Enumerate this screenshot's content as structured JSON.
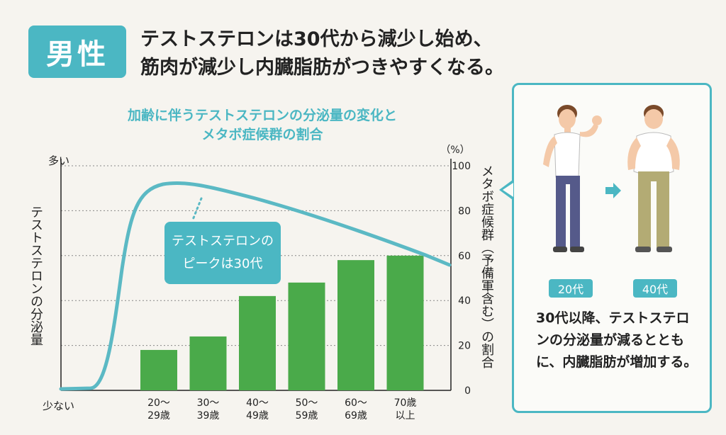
{
  "badge": "男性",
  "headline": {
    "line1": "テストステロンは30代から減少し始め、",
    "line2": "筋肉が減少し内臓脂肪がつきやすくなる。"
  },
  "chart_data": {
    "type": "bar",
    "title_line1": "加齢に伴うテストステロンの分泌量の変化と",
    "title_line2": "メタボ症候群の割合",
    "categories": [
      "20〜\n29歳",
      "30〜\n39歳",
      "40〜\n49歳",
      "50〜\n59歳",
      "60〜\n69歳",
      "70歳\n以上"
    ],
    "values": [
      18,
      24,
      42,
      48,
      58,
      60
    ],
    "ylim": [
      0,
      100
    ],
    "yticks": [
      "0",
      "20",
      "40",
      "60",
      "80",
      "100"
    ],
    "yunit": "（%）",
    "ylabel_right": "メタボ症候群（予備軍含む）の割合",
    "ylabel_left": "テストステロンの分泌量",
    "left_axis_top": "多い",
    "left_axis_bottom": "少ない",
    "bar_color": "#4aaa4a",
    "line_color": "#5bb9c4",
    "grid": true,
    "callout_line1": "テストステロンの",
    "callout_line2": "ピークは30代"
  },
  "panel": {
    "age_before": "20代",
    "age_after": "40代",
    "text": "30代以降、テストステロンの分泌量が減るとともに、内臓脂肪が増加する。"
  },
  "colors": {
    "accent": "#4bb7c3",
    "bar": "#4aaa4a",
    "background": "#f6f4ef"
  }
}
